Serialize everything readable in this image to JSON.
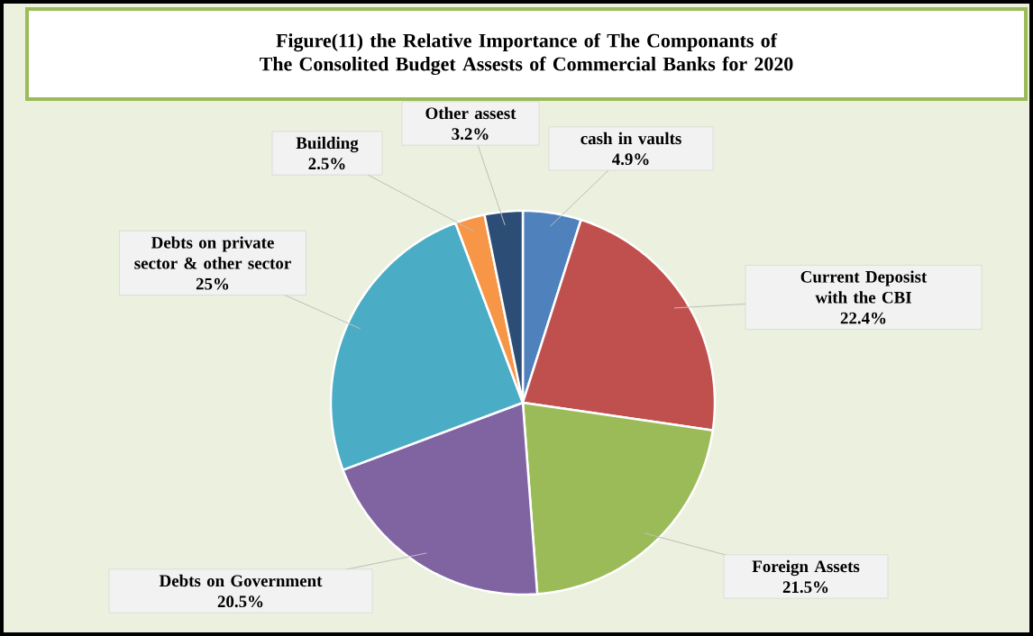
{
  "chart_data": {
    "type": "pie",
    "title": "Figure(11) the Relative Importance of The Componants of The Consolited Budget Assests of Commercial Banks for 2020",
    "categories": [
      "cash in vaults",
      "Current Deposist with the CBI",
      "Foreign Assets",
      "Debts on Government",
      "Debts on private sector & other sector",
      "Building",
      "Other assest"
    ],
    "values": [
      4.9,
      22.4,
      21.5,
      20.5,
      25,
      2.5,
      3.2
    ],
    "colors": [
      "#4f81bd",
      "#c0504d",
      "#9bbb59",
      "#8064a2",
      "#4bacc6",
      "#f79646",
      "#2c4d75"
    ],
    "value_labels": [
      "4.9%",
      "22.4%",
      "21.5%",
      "20.5%",
      "25%",
      "2.5%",
      "3.2%"
    ]
  }
}
